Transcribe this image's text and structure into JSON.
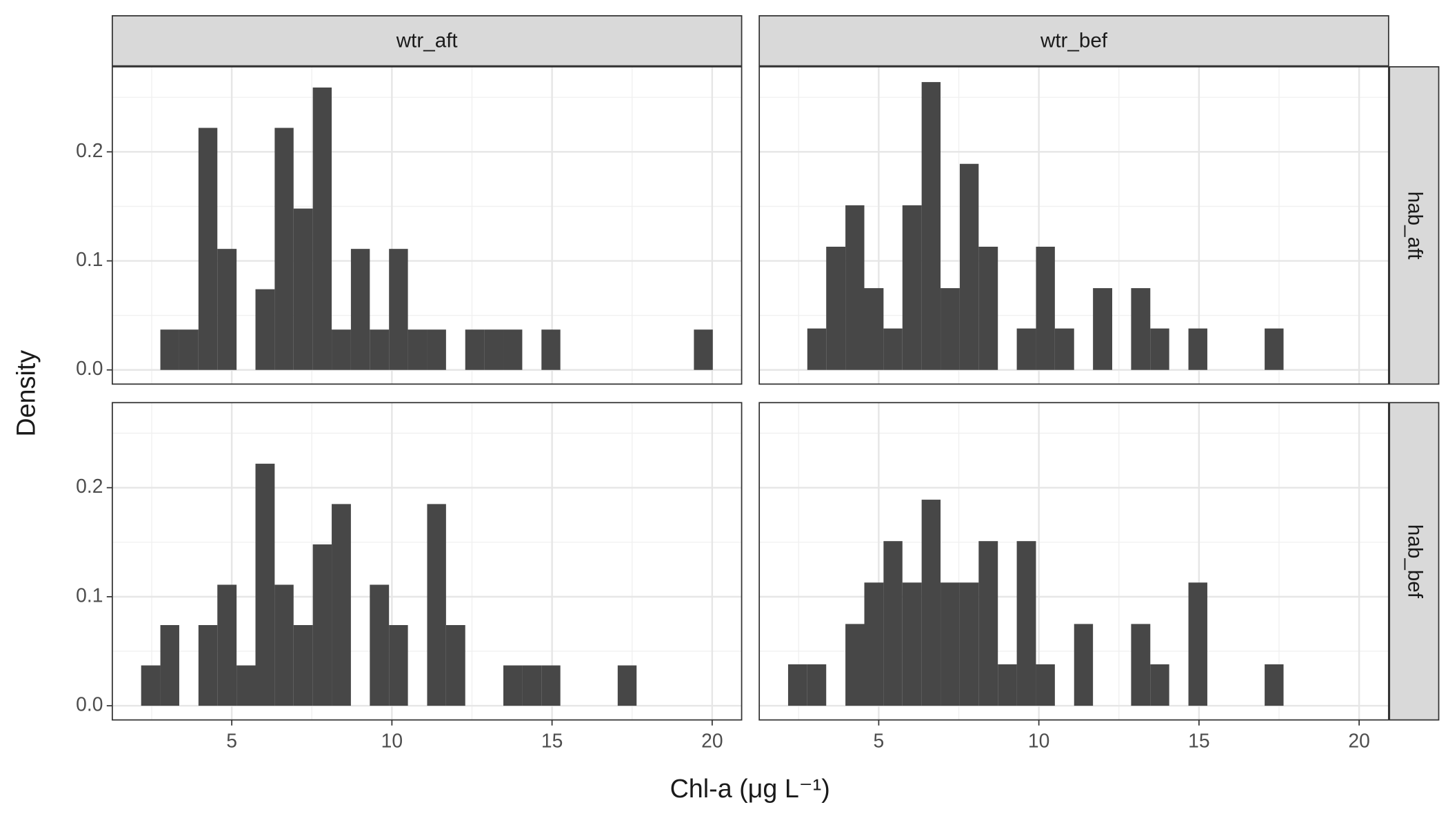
{
  "xlabel": "Chl-a (μg L⁻¹)",
  "ylabel": "Density",
  "facet_cols": [
    "wtr_aft",
    "wtr_bef"
  ],
  "facet_rows": [
    "hab_aft",
    "hab_bef"
  ],
  "chart_data": [
    {
      "type": "histogram",
      "color": "#474747",
      "grid": true,
      "bins": [
        2.17,
        2.77,
        3.36,
        3.96,
        4.55,
        5.15,
        5.74,
        6.34,
        6.93,
        7.53,
        8.12,
        8.72,
        9.31,
        9.91,
        10.5,
        11.1,
        11.69,
        12.29,
        12.88,
        13.48,
        14.07,
        14.67,
        15.26,
        15.86,
        16.45,
        17.05,
        17.64,
        18.24,
        18.83,
        19.43,
        20.02
      ],
      "values": [
        0,
        0.037,
        0.037,
        0.222,
        0.111,
        0,
        0.074,
        0.222,
        0.148,
        0.259,
        0.037,
        0.111,
        0.037,
        0.111,
        0.037,
        0.037,
        0,
        0.037,
        0.037,
        0.037,
        0,
        0.037,
        0,
        0,
        0,
        0,
        0,
        0,
        0,
        0.037
      ],
      "xlim": [
        1.27,
        20.92
      ],
      "xticks": [
        5,
        10,
        15,
        20
      ],
      "ylim": [
        -0.013,
        0.278
      ],
      "yticks": [
        {
          "value": 0,
          "label": "0.0"
        },
        0.1,
        0.2
      ]
    },
    {
      "type": "histogram",
      "color": "#474747",
      "grid": true,
      "bins": [
        2.17,
        2.77,
        3.36,
        3.96,
        4.55,
        5.15,
        5.74,
        6.34,
        6.93,
        7.53,
        8.12,
        8.72,
        9.31,
        9.91,
        10.5,
        11.1,
        11.69,
        12.29,
        12.88,
        13.48,
        14.07,
        14.67,
        15.26,
        15.86,
        16.45,
        17.05,
        17.64,
        18.24,
        18.83,
        19.43,
        20.02
      ],
      "values": [
        0,
        0.038,
        0.113,
        0.151,
        0.075,
        0.038,
        0.151,
        0.264,
        0.075,
        0.189,
        0.113,
        0,
        0.038,
        0.113,
        0.038,
        0,
        0.075,
        0,
        0.075,
        0.038,
        0,
        0.038,
        0,
        0,
        0,
        0.038,
        0,
        0,
        0,
        0
      ],
      "xlim": [
        1.27,
        20.92
      ],
      "xticks": [
        5,
        10,
        15,
        20
      ],
      "ylim": [
        -0.013,
        0.278
      ],
      "yticks": [
        {
          "value": 0,
          "label": "0.0"
        },
        0.1,
        0.2
      ]
    },
    {
      "type": "histogram",
      "color": "#474747",
      "grid": true,
      "bins": [
        2.17,
        2.77,
        3.36,
        3.96,
        4.55,
        5.15,
        5.74,
        6.34,
        6.93,
        7.53,
        8.12,
        8.72,
        9.31,
        9.91,
        10.5,
        11.1,
        11.69,
        12.29,
        12.88,
        13.48,
        14.07,
        14.67,
        15.26,
        15.86,
        16.45,
        17.05,
        17.64,
        18.24,
        18.83,
        19.43,
        20.02
      ],
      "values": [
        0.037,
        0.074,
        0,
        0.074,
        0.111,
        0.037,
        0.222,
        0.111,
        0.074,
        0.148,
        0.185,
        0,
        0.111,
        0.074,
        0,
        0.185,
        0.074,
        0,
        0,
        0.037,
        0.037,
        0.037,
        0,
        0,
        0,
        0.037,
        0,
        0,
        0,
        0
      ],
      "xlim": [
        1.27,
        20.92
      ],
      "xticks": [
        5,
        10,
        15,
        20
      ],
      "ylim": [
        -0.013,
        0.278
      ],
      "yticks": [
        {
          "value": 0,
          "label": "0.0"
        },
        0.1,
        0.2
      ]
    },
    {
      "type": "histogram",
      "color": "#474747",
      "grid": true,
      "bins": [
        2.17,
        2.77,
        3.36,
        3.96,
        4.55,
        5.15,
        5.74,
        6.34,
        6.93,
        7.53,
        8.12,
        8.72,
        9.31,
        9.91,
        10.5,
        11.1,
        11.69,
        12.29,
        12.88,
        13.48,
        14.07,
        14.67,
        15.26,
        15.86,
        16.45,
        17.05,
        17.64,
        18.24,
        18.83,
        19.43,
        20.02
      ],
      "values": [
        0.038,
        0.038,
        0,
        0.075,
        0.113,
        0.151,
        0.113,
        0.189,
        0.113,
        0.113,
        0.151,
        0.038,
        0.151,
        0.038,
        0,
        0.075,
        0,
        0,
        0.075,
        0.038,
        0,
        0.113,
        0,
        0,
        0,
        0.038,
        0,
        0,
        0,
        0
      ],
      "xlim": [
        1.27,
        20.92
      ],
      "xticks": [
        5,
        10,
        15,
        20
      ],
      "ylim": [
        -0.013,
        0.278
      ],
      "yticks": [
        {
          "value": 0,
          "label": "0.0"
        },
        0.1,
        0.2
      ]
    }
  ]
}
